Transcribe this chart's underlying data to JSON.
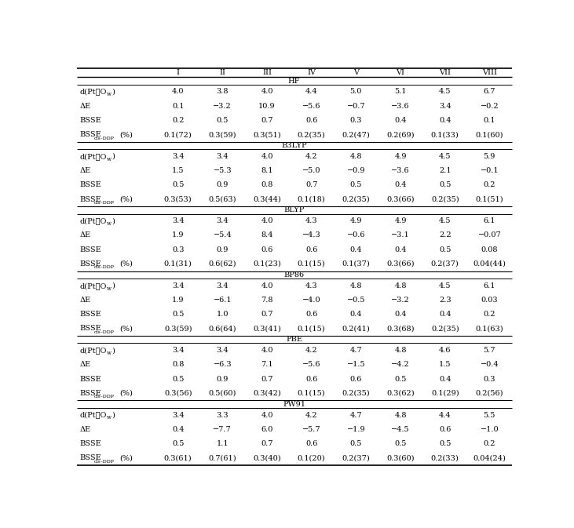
{
  "sections": [
    {
      "header": "HF",
      "rows": [
        [
          "d(Pt⋯O_w)",
          "4.0",
          "3.8",
          "4.0",
          "4.4",
          "5.0",
          "5.1",
          "4.5",
          "6.7"
        ],
        [
          "ΔE",
          "0.1",
          "−3.2",
          "10.9",
          "−5.6",
          "−0.7",
          "−3.6",
          "3.4",
          "−0.2"
        ],
        [
          "BSSE",
          "0.2",
          "0.5",
          "0.7",
          "0.6",
          "0.3",
          "0.4",
          "0.4",
          "0.1"
        ],
        [
          "BSSE_cis-DDP(%)",
          "0.1(72)",
          "0.3(59)",
          "0.3(51)",
          "0.2(35)",
          "0.2(47)",
          "0.2(69)",
          "0.1(33)",
          "0.1(60)"
        ]
      ]
    },
    {
      "header": "B3LYP",
      "rows": [
        [
          "d(Pt⋯O_w)",
          "3.4",
          "3.4",
          "4.0",
          "4.2",
          "4.8",
          "4.9",
          "4.5",
          "5.9"
        ],
        [
          "ΔE",
          "1.5",
          "−5.3",
          "8.1",
          "−5.0",
          "−0.9",
          "−3.6",
          "2.1",
          "−0.1"
        ],
        [
          "BSSE",
          "0.5",
          "0.9",
          "0.8",
          "0.7",
          "0.5",
          "0.4",
          "0.5",
          "0.2"
        ],
        [
          "BSSE_cis-DDP(%)",
          "0.3(53)",
          "0.5(63)",
          "0.3(44)",
          "0.1(18)",
          "0.2(35)",
          "0.3(66)",
          "0.2(35)",
          "0.1(51)"
        ]
      ]
    },
    {
      "header": "BLYP",
      "rows": [
        [
          "d(Pt⋯O_w)",
          "3.4",
          "3.4",
          "4.0",
          "4.3",
          "4.9",
          "4.9",
          "4.5",
          "6.1"
        ],
        [
          "ΔE",
          "1.9",
          "−5.4",
          "8.4",
          "−4.3",
          "−0.6",
          "−3.1",
          "2.2",
          "−0.07"
        ],
        [
          "BSSE",
          "0.3",
          "0.9",
          "0.6",
          "0.6",
          "0.4",
          "0.4",
          "0.5",
          "0.08"
        ],
        [
          "BSSE_cis-DDP(%)",
          "0.1(31)",
          "0.6(62)",
          "0.1(23)",
          "0.1(15)",
          "0.1(37)",
          "0.3(66)",
          "0.2(37)",
          "0.04(44)"
        ]
      ]
    },
    {
      "header": "BP86",
      "rows": [
        [
          "d(Pt⋯O_w)",
          "3.4",
          "3.4",
          "4.0",
          "4.3",
          "4.8",
          "4.8",
          "4.5",
          "6.1"
        ],
        [
          "ΔE",
          "1.9",
          "−6.1",
          "7.8",
          "−4.0",
          "−0.5",
          "−3.2",
          "2.3",
          "0.03"
        ],
        [
          "BSSE",
          "0.5",
          "1.0",
          "0.7",
          "0.6",
          "0.4",
          "0.4",
          "0.4",
          "0.2"
        ],
        [
          "BSSE_cis-DDP(%)",
          "0.3(59)",
          "0.6(64)",
          "0.3(41)",
          "0.1(15)",
          "0.2(41)",
          "0.3(68)",
          "0.2(35)",
          "0.1(63)"
        ]
      ]
    },
    {
      "header": "PBE",
      "rows": [
        [
          "d(Pt⋯O_w)",
          "3.4",
          "3.4",
          "4.0",
          "4.2",
          "4.7",
          "4.8",
          "4.6",
          "5.7"
        ],
        [
          "ΔE",
          "0.8",
          "−6.3",
          "7.1",
          "−5.6",
          "−1.5",
          "−4.2",
          "1.5",
          "−0.4"
        ],
        [
          "BSSE",
          "0.5",
          "0.9",
          "0.7",
          "0.6",
          "0.6",
          "0.5",
          "0.4",
          "0.3"
        ],
        [
          "BSSE_cis-DDP(%)",
          "0.3(56)",
          "0.5(60)",
          "0.3(42)",
          "0.1(15)",
          "0.2(35)",
          "0.3(62)",
          "0.1(29)",
          "0.2(56)"
        ]
      ]
    },
    {
      "header": "PW91",
      "rows": [
        [
          "d(Pt⋯O_w)",
          "3.4",
          "3.3",
          "4.0",
          "4.2",
          "4.7",
          "4.8",
          "4.4",
          "5.5"
        ],
        [
          "ΔE",
          "0.4",
          "−7.7",
          "6.0",
          "−5.7",
          "−1.9",
          "−4.5",
          "0.6",
          "−1.0"
        ],
        [
          "BSSE",
          "0.5",
          "1.1",
          "0.7",
          "0.6",
          "0.5",
          "0.5",
          "0.5",
          "0.2"
        ],
        [
          "BSSE_cis-DDP(%)",
          "0.3(61)",
          "0.7(61)",
          "0.3(40)",
          "0.1(20)",
          "0.2(37)",
          "0.3(60)",
          "0.2(33)",
          "0.04(24)"
        ]
      ]
    }
  ],
  "col_headers": [
    "I",
    "II",
    "III",
    "IV",
    "V",
    "VI",
    "VII",
    "VIII"
  ],
  "bg_color": "#ffffff",
  "text_color": "#000000",
  "font_size": 7.0,
  "line_color": "#000000"
}
